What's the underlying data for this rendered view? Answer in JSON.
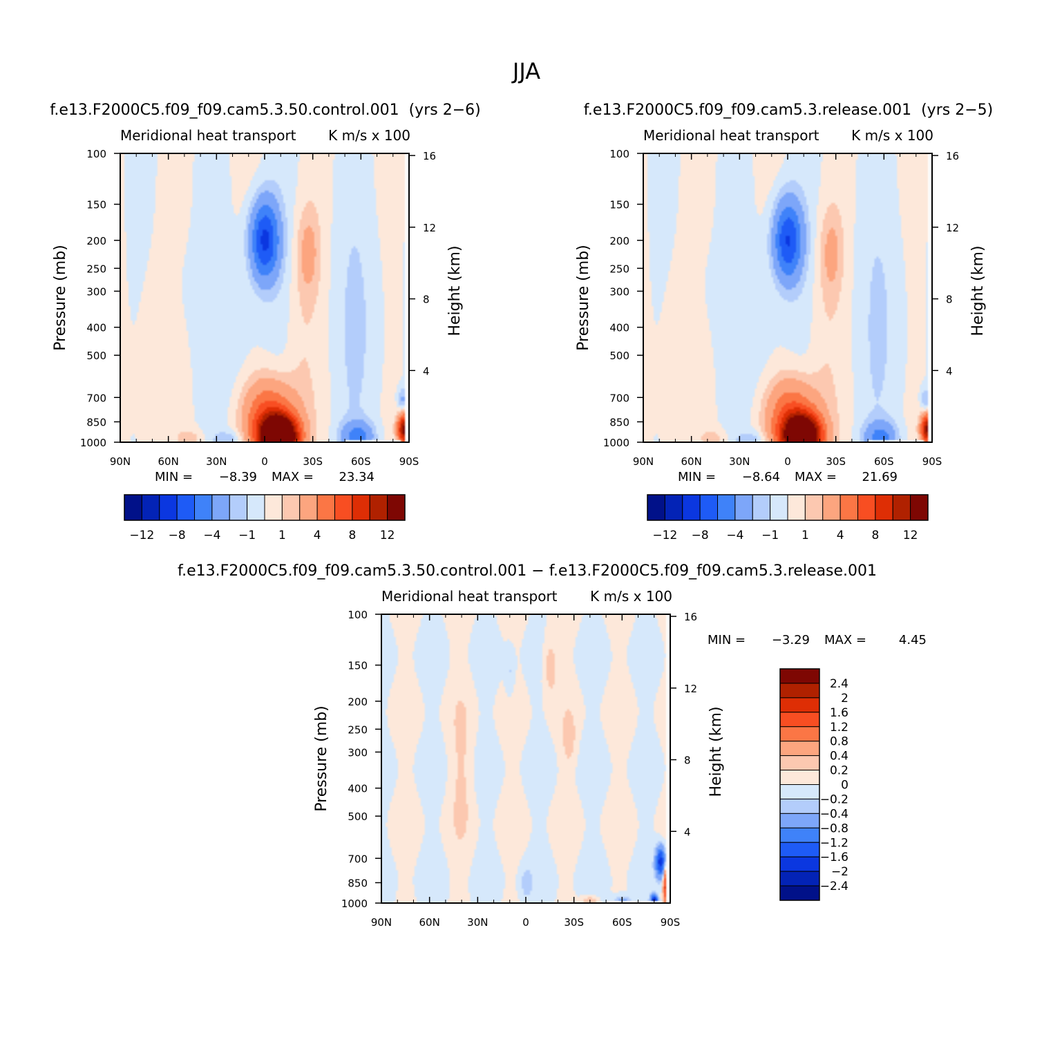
{
  "figure_title": "JJA",
  "colors": {
    "pos_scale": [
      "#fde8da",
      "#fcc8b0",
      "#fca57f",
      "#fb7645",
      "#f84e22",
      "#de2e05",
      "#b02100",
      "#7e0703"
    ],
    "neg_scale": [
      "#d6e8fb",
      "#b3cdfb",
      "#7da6f9",
      "#3f82f9",
      "#1e5bf6",
      "#0b37e0",
      "#0323b6",
      "#011189"
    ],
    "axis": "#000000"
  },
  "chart_data": [
    {
      "type": "heatmap",
      "case": "f.e13.F2000C5.f09_f09.cam5.3.50.control.001",
      "years": "(yrs 2−6)",
      "title": "f.e13.F2000C5.f09_f09.cam5.3.50.control.001  (yrs 2−6)",
      "variable": "Meridional heat transport",
      "units": "K m/s x 100",
      "xlabel": "",
      "ylabel": "Pressure (mb)",
      "ylabel_right": "Height (km)",
      "x_ticks": [
        "90N",
        "60N",
        "30N",
        "0",
        "30S",
        "60S",
        "90S"
      ],
      "y_ticks": [
        100,
        150,
        200,
        250,
        300,
        400,
        500,
        700,
        850,
        1000
      ],
      "height_ticks": [
        16,
        12,
        8,
        4
      ],
      "ylim": [
        1000,
        100
      ],
      "min_label": "MIN =",
      "min": "−8.39",
      "max_label": "MAX =",
      "max": "23.34",
      "colorbar_orientation": "horizontal",
      "colorbar_tick_labels": [
        "−12",
        "−8",
        "−4",
        "−1",
        "1",
        "4",
        "8",
        "12"
      ],
      "features": [
        {
          "lat": 0,
          "p": 200,
          "value": -8.4
        },
        {
          "lat": -10,
          "p": 950,
          "value": 23.3
        },
        {
          "lat": -25,
          "p": 220,
          "value": 2
        },
        {
          "lat": -60,
          "p": 950,
          "value": -4
        },
        {
          "lat": -85,
          "p": 900,
          "value": 12
        }
      ]
    },
    {
      "type": "heatmap",
      "case": "f.e13.F2000C5.f09_f09.cam5.3.release.001",
      "years": "(yrs 2−5)",
      "title": "f.e13.F2000C5.f09_f09.cam5.3.release.001  (yrs 2−5)",
      "variable": "Meridional heat transport",
      "units": "K m/s x 100",
      "xlabel": "",
      "ylabel": "Pressure (mb)",
      "ylabel_right": "Height (km)",
      "x_ticks": [
        "90N",
        "60N",
        "30N",
        "0",
        "30S",
        "60S",
        "90S"
      ],
      "y_ticks": [
        100,
        150,
        200,
        250,
        300,
        400,
        500,
        700,
        850,
        1000
      ],
      "height_ticks": [
        16,
        12,
        8,
        4
      ],
      "ylim": [
        1000,
        100
      ],
      "min_label": "MIN =",
      "min": "−8.64",
      "max_label": "MAX =",
      "max": "21.69",
      "colorbar_orientation": "horizontal",
      "colorbar_tick_labels": [
        "−12",
        "−8",
        "−4",
        "−1",
        "1",
        "4",
        "8",
        "12"
      ],
      "features": [
        {
          "lat": 0,
          "p": 200,
          "value": -8.6
        },
        {
          "lat": -10,
          "p": 950,
          "value": 21.7
        },
        {
          "lat": -25,
          "p": 220,
          "value": 2
        },
        {
          "lat": -60,
          "p": 950,
          "value": -4
        },
        {
          "lat": -85,
          "p": 900,
          "value": 12
        }
      ]
    },
    {
      "type": "heatmap",
      "title": "f.e13.F2000C5.f09_f09.cam5.3.50.control.001 − f.e13.F2000C5.f09_f09.cam5.3.release.001",
      "variable": "Meridional heat transport",
      "units": "K m/s x 100",
      "xlabel": "",
      "ylabel": "Pressure (mb)",
      "ylabel_right": "Height (km)",
      "x_ticks": [
        "90N",
        "60N",
        "30N",
        "0",
        "30S",
        "60S",
        "90S"
      ],
      "y_ticks": [
        100,
        150,
        200,
        250,
        300,
        400,
        500,
        700,
        850,
        1000
      ],
      "height_ticks": [
        16,
        12,
        8,
        4
      ],
      "ylim": [
        1000,
        100
      ],
      "min_label": "MIN =",
      "min": "−3.29",
      "max_label": "MAX =",
      "max": "4.45",
      "colorbar_orientation": "vertical",
      "colorbar_tick_labels": [
        "2.4",
        "2",
        "1.6",
        "1.2",
        "0.8",
        "0.4",
        "0.2",
        "0",
        "−0.2",
        "−0.4",
        "−0.8",
        "−1.2",
        "−1.6",
        "−2",
        "−2.4"
      ],
      "features": [
        {
          "lat": -85,
          "p": 700,
          "value": -1.6
        },
        {
          "lat": -87,
          "p": 870,
          "value": 2.4
        },
        {
          "lat": -15,
          "p": 150,
          "value": 0.4
        },
        {
          "lat": -80,
          "p": 990,
          "value": -2.4
        }
      ]
    }
  ]
}
